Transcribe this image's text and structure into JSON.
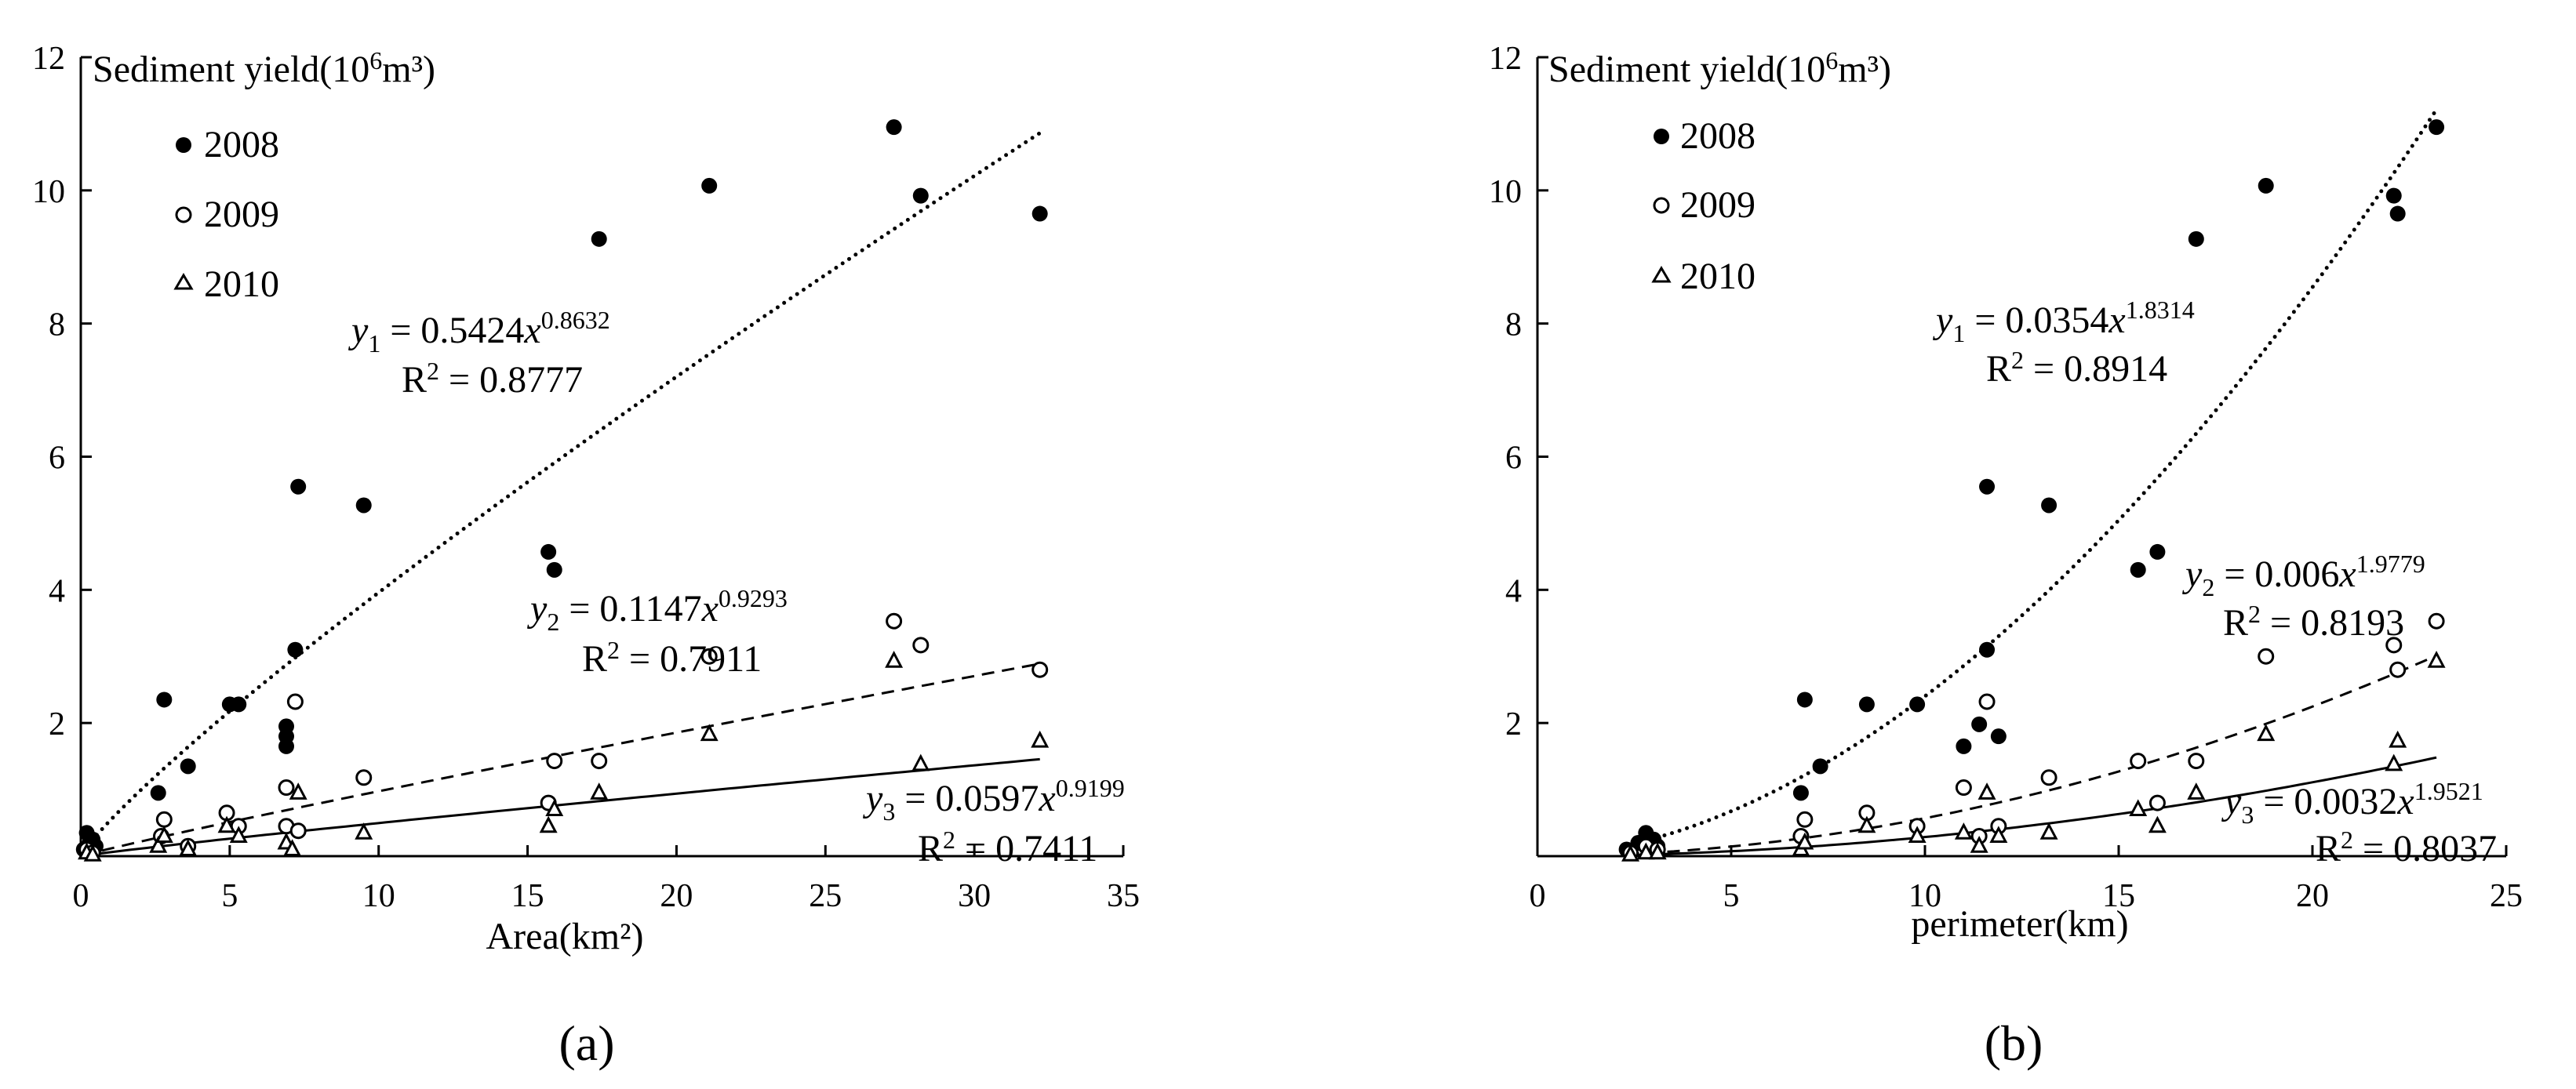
{
  "chart_data": [
    {
      "type": "scatter",
      "panel_label": "(a)",
      "ylabel_main": "Sediment yield(10",
      "ylabel_sup": "6",
      "ylabel_tail": "m³)",
      "xlabel": "Area(km²)",
      "xlim": [
        0,
        35
      ],
      "ylim": [
        0,
        12
      ],
      "x_ticks": [
        "0",
        "5",
        "10",
        "15",
        "20",
        "25",
        "30",
        "35"
      ],
      "y_ticks": [
        "12",
        "10",
        "8",
        "6",
        "4",
        "2"
      ],
      "legend": [
        "2008",
        "2009",
        "2010"
      ],
      "series": [
        {
          "name": "2008",
          "marker": "filled-circle",
          "points": [
            [
              0.1,
              0.1
            ],
            [
              0.2,
              0.35
            ],
            [
              0.3,
              0.2
            ],
            [
              0.4,
              0.25
            ],
            [
              0.5,
              0.15
            ],
            [
              2.6,
              0.95
            ],
            [
              2.8,
              2.35
            ],
            [
              3.6,
              1.35
            ],
            [
              5.0,
              2.28
            ],
            [
              5.3,
              2.28
            ],
            [
              6.9,
              1.95
            ],
            [
              6.9,
              1.8
            ],
            [
              6.9,
              1.65
            ],
            [
              7.2,
              3.1
            ],
            [
              7.3,
              5.55
            ],
            [
              9.5,
              5.27
            ],
            [
              15.7,
              4.57
            ],
            [
              15.9,
              4.3
            ],
            [
              17.4,
              9.27
            ],
            [
              21.1,
              10.07
            ],
            [
              27.3,
              10.95
            ],
            [
              28.2,
              9.92
            ],
            [
              32.2,
              9.65
            ]
          ]
        },
        {
          "name": "2009",
          "marker": "open-circle",
          "points": [
            [
              0.2,
              0.1
            ],
            [
              0.4,
              0.05
            ],
            [
              2.7,
              0.3
            ],
            [
              2.8,
              0.55
            ],
            [
              3.6,
              0.15
            ],
            [
              4.9,
              0.65
            ],
            [
              5.3,
              0.45
            ],
            [
              6.9,
              1.03
            ],
            [
              6.9,
              0.45
            ],
            [
              7.2,
              2.32
            ],
            [
              7.3,
              0.38
            ],
            [
              9.5,
              1.18
            ],
            [
              15.7,
              0.8
            ],
            [
              15.9,
              1.43
            ],
            [
              17.4,
              1.43
            ],
            [
              21.1,
              3.0
            ],
            [
              27.3,
              3.53
            ],
            [
              28.2,
              3.17
            ],
            [
              32.2,
              2.8
            ]
          ]
        },
        {
          "name": "2010",
          "marker": "open-triangle",
          "points": [
            [
              0.2,
              0.05
            ],
            [
              0.4,
              0.02
            ],
            [
              2.6,
              0.15
            ],
            [
              2.8,
              0.3
            ],
            [
              3.6,
              0.1
            ],
            [
              4.9,
              0.45
            ],
            [
              5.3,
              0.3
            ],
            [
              6.9,
              0.2
            ],
            [
              7.1,
              0.1
            ],
            [
              7.3,
              0.95
            ],
            [
              9.5,
              0.35
            ],
            [
              15.7,
              0.45
            ],
            [
              15.9,
              0.7
            ],
            [
              17.4,
              0.95
            ],
            [
              21.1,
              1.83
            ],
            [
              27.3,
              2.93
            ],
            [
              28.2,
              1.38
            ],
            [
              32.2,
              1.73
            ]
          ]
        }
      ],
      "fits": [
        {
          "name": "y1",
          "series": "2008",
          "a": 0.5424,
          "b": 0.8632,
          "style": "dotted",
          "range": [
            0.05,
            32.2
          ],
          "eq_var": "y",
          "eq_sub": "1",
          "eq_coef": " = 0.5424",
          "eq_x": "x",
          "eq_exp": "0.8632",
          "r2_label": "R",
          "r2_sup": "2",
          "r2_value": " = 0.8777"
        },
        {
          "name": "y2",
          "series": "2009",
          "a": 0.1147,
          "b": 0.9293,
          "style": "dashed",
          "range": [
            0.05,
            32.2
          ],
          "eq_var": "y",
          "eq_sub": "2",
          "eq_coef": " = 0.1147",
          "eq_x": "x",
          "eq_exp": "0.9293",
          "r2_label": "R",
          "r2_sup": "2",
          "r2_value": " = 0.7911"
        },
        {
          "name": "y3",
          "series": "2010",
          "a": 0.0597,
          "b": 0.9199,
          "style": "solid",
          "range": [
            0.05,
            32.2
          ],
          "eq_var": "y",
          "eq_sub": "3",
          "eq_coef": " = 0.0597",
          "eq_x": "x",
          "eq_exp": "0.9199",
          "r2_label": "R",
          "r2_sup": "2",
          "r2_value": " = 0.7411"
        }
      ]
    },
    {
      "type": "scatter",
      "panel_label": "(b)",
      "ylabel_main": "Sediment yield(10",
      "ylabel_sup": "6",
      "ylabel_tail": "m³)",
      "xlabel": "perimeter(km)",
      "xlim": [
        0,
        25
      ],
      "ylim": [
        0,
        12
      ],
      "x_ticks": [
        "0",
        "5",
        "10",
        "15",
        "20",
        "25"
      ],
      "y_ticks": [
        "12",
        "10",
        "8",
        "6",
        "4",
        "2"
      ],
      "legend": [
        "2008",
        "2009",
        "2010"
      ],
      "series": [
        {
          "name": "2008",
          "marker": "filled-circle",
          "points": [
            [
              2.3,
              0.1
            ],
            [
              2.6,
              0.2
            ],
            [
              2.8,
              0.35
            ],
            [
              3.0,
              0.25
            ],
            [
              3.1,
              0.15
            ],
            [
              6.8,
              0.95
            ],
            [
              6.9,
              2.35
            ],
            [
              7.3,
              1.35
            ],
            [
              8.5,
              2.28
            ],
            [
              9.8,
              2.28
            ],
            [
              11.0,
              1.65
            ],
            [
              11.4,
              1.98
            ],
            [
              11.6,
              3.1
            ],
            [
              11.6,
              5.55
            ],
            [
              11.9,
              1.8
            ],
            [
              13.2,
              5.27
            ],
            [
              15.5,
              4.3
            ],
            [
              16.0,
              4.57
            ],
            [
              17.0,
              9.27
            ],
            [
              18.8,
              10.07
            ],
            [
              22.1,
              9.92
            ],
            [
              22.2,
              9.65
            ],
            [
              23.2,
              10.95
            ]
          ]
        },
        {
          "name": "2009",
          "marker": "open-circle",
          "points": [
            [
              2.4,
              0.05
            ],
            [
              2.8,
              0.15
            ],
            [
              3.1,
              0.1
            ],
            [
              6.8,
              0.3
            ],
            [
              6.9,
              0.55
            ],
            [
              8.5,
              0.65
            ],
            [
              9.8,
              0.45
            ],
            [
              11.0,
              1.03
            ],
            [
              11.4,
              0.3
            ],
            [
              11.6,
              2.32
            ],
            [
              11.9,
              0.45
            ],
            [
              13.2,
              1.18
            ],
            [
              15.5,
              1.43
            ],
            [
              16.0,
              0.8
            ],
            [
              17.0,
              1.43
            ],
            [
              18.8,
              3.0
            ],
            [
              22.1,
              3.17
            ],
            [
              22.2,
              2.8
            ],
            [
              23.2,
              3.53
            ]
          ]
        },
        {
          "name": "2010",
          "marker": "open-triangle",
          "points": [
            [
              2.4,
              0.02
            ],
            [
              2.8,
              0.05
            ],
            [
              3.1,
              0.05
            ],
            [
              6.8,
              0.1
            ],
            [
              6.9,
              0.2
            ],
            [
              8.5,
              0.45
            ],
            [
              9.8,
              0.3
            ],
            [
              11.0,
              0.35
            ],
            [
              11.4,
              0.15
            ],
            [
              11.6,
              0.95
            ],
            [
              11.9,
              0.3
            ],
            [
              13.2,
              0.35
            ],
            [
              15.5,
              0.7
            ],
            [
              16.0,
              0.45
            ],
            [
              17.0,
              0.95
            ],
            [
              18.8,
              1.83
            ],
            [
              22.1,
              1.38
            ],
            [
              22.2,
              1.73
            ],
            [
              23.2,
              2.93
            ]
          ]
        }
      ],
      "fits": [
        {
          "name": "y1",
          "series": "2008",
          "a": 0.0354,
          "b": 1.8314,
          "style": "dotted",
          "range": [
            2.3,
            23.2
          ],
          "eq_var": "y",
          "eq_sub": "1",
          "eq_coef": " = 0.0354",
          "eq_x": "x",
          "eq_exp": "1.8314",
          "r2_label": "R",
          "r2_sup": "2",
          "r2_value": " = 0.8914"
        },
        {
          "name": "y2",
          "series": "2009",
          "a": 0.006,
          "b": 1.9779,
          "style": "dashed",
          "range": [
            2.3,
            23.2
          ],
          "eq_var": "y",
          "eq_sub": "2",
          "eq_coef": " = 0.006",
          "eq_x": "x",
          "eq_exp": "1.9779",
          "r2_label": "R",
          "r2_sup": "2",
          "r2_value": " = 0.8193"
        },
        {
          "name": "y3",
          "series": "2010",
          "a": 0.0032,
          "b": 1.9521,
          "style": "solid",
          "range": [
            2.3,
            23.2
          ],
          "eq_var": "y",
          "eq_sub": "3",
          "eq_coef": " = 0.0032",
          "eq_x": "x",
          "eq_exp": "1.9521",
          "r2_label": "R",
          "r2_sup": "2",
          "r2_value": " = 0.8037"
        }
      ]
    }
  ]
}
